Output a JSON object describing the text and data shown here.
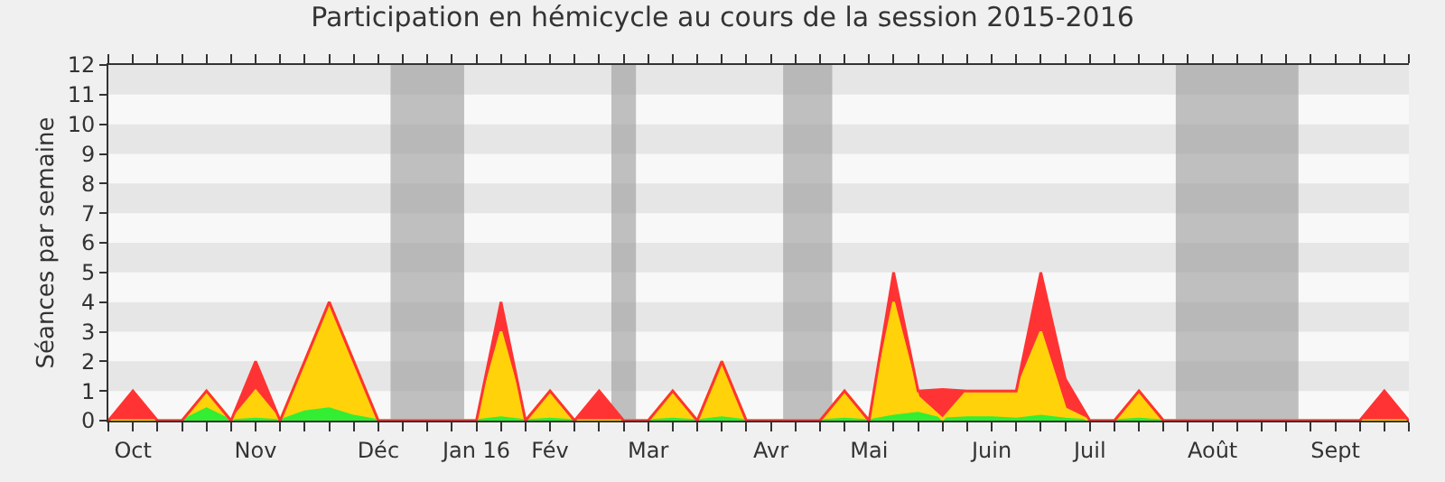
{
  "chart_data": {
    "type": "area",
    "stacked": true,
    "title": "Participation en hémicycle au cours de la session 2015-2016",
    "ylabel": "Séances par semaine",
    "categories": [
      null,
      "Oct",
      null,
      null,
      null,
      null,
      "Nov",
      null,
      null,
      null,
      null,
      "Déc",
      null,
      null,
      null,
      "Jan 16",
      null,
      null,
      "Fév",
      null,
      null,
      null,
      "Mar",
      null,
      null,
      null,
      null,
      "Avr",
      null,
      null,
      null,
      "Mai",
      null,
      null,
      null,
      null,
      "Juin",
      null,
      null,
      null,
      "Juil",
      null,
      null,
      null,
      null,
      "Août",
      null,
      null,
      null,
      null,
      "Sept",
      null,
      null,
      null
    ],
    "ylim": [
      0,
      12
    ],
    "yticks": [
      0,
      1,
      2,
      3,
      4,
      5,
      6,
      7,
      8,
      9,
      10,
      11,
      12
    ],
    "marker": "none",
    "line_style": "solid",
    "series": [
      {
        "color": "#33ee33",
        "values": [
          0,
          0,
          0,
          0,
          0.4,
          0,
          0.05,
          0,
          0.3,
          0.4,
          0.15,
          0,
          0,
          0,
          0,
          0,
          0.1,
          0,
          0.05,
          0,
          0,
          0,
          0,
          0.05,
          0,
          0.1,
          0,
          0,
          0,
          0,
          0.05,
          0,
          0.15,
          0.25,
          0.05,
          0.1,
          0.1,
          0.05,
          0.15,
          0.05,
          0,
          0,
          0.05,
          0,
          0,
          0,
          0,
          0,
          0,
          0,
          0,
          0,
          0,
          0
        ]
      },
      {
        "color": "#ffd20a",
        "values": [
          0,
          0,
          0,
          0,
          0.6,
          0,
          0.95,
          0,
          1.7,
          3.6,
          1.85,
          0,
          0,
          0,
          0,
          0,
          2.9,
          0,
          0.95,
          0,
          0,
          0,
          0,
          0.95,
          0,
          1.9,
          0,
          0,
          0,
          0,
          0.95,
          0,
          3.85,
          0.55,
          0,
          0.9,
          0.9,
          0.95,
          2.85,
          0.35,
          0,
          0,
          0.95,
          0,
          0,
          0,
          0,
          0,
          0,
          0,
          0,
          0,
          0,
          0
        ]
      },
      {
        "color": "#ff3333",
        "values": [
          0,
          1,
          0,
          0,
          0,
          0,
          1,
          0,
          0,
          0,
          0,
          0,
          0,
          0,
          0,
          0,
          1,
          0,
          0,
          0,
          1,
          0,
          0,
          0,
          0,
          0,
          0,
          0,
          0,
          0,
          0,
          0,
          1,
          0.2,
          1,
          0,
          0,
          0,
          2,
          1,
          0,
          0,
          0,
          0,
          0,
          0,
          0,
          0,
          0,
          0,
          0,
          0,
          1,
          0
        ]
      }
    ]
  }
}
